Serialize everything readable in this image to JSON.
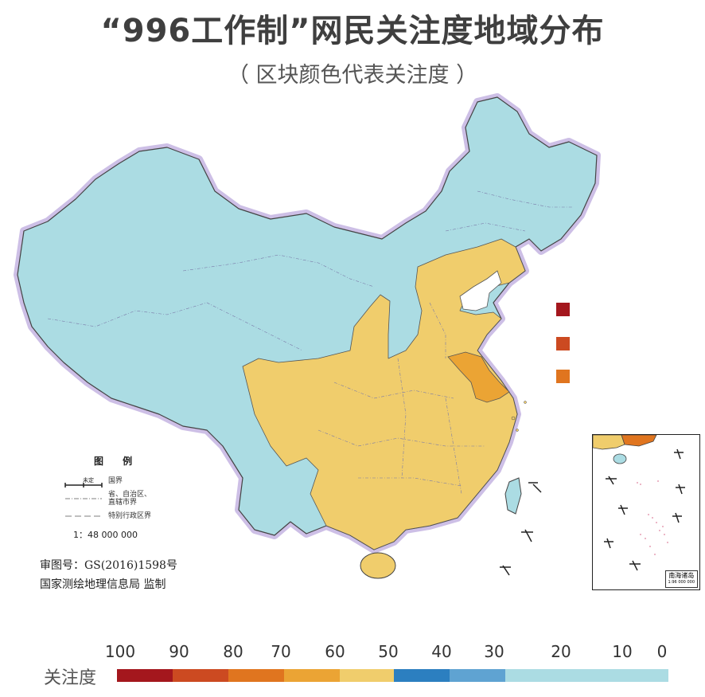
{
  "title": "“996工作制”网民关注度地域分布",
  "subtitle": "（ 区块颜色代表关注度 ）",
  "legend": {
    "title": "图 例",
    "undetermined": "未定",
    "items": [
      {
        "label": "国界"
      },
      {
        "label": "省、自治区、\n直辖市界"
      },
      {
        "label": "特别行政区界"
      }
    ],
    "scale": "1：48 000 000"
  },
  "approval": {
    "number": "审图号：GS(2016)1598号",
    "authority": "国家测绘地理信息局 监制"
  },
  "inset": {
    "name": "南海诸岛",
    "scale": "1:96 000 000"
  },
  "colorbar": {
    "label": "关注度",
    "ticks": [
      "100",
      "90",
      "80",
      "70",
      "60",
      "50",
      "40",
      "30",
      "20",
      "10",
      "0"
    ],
    "colors": {
      "c100_90": "#a4171d",
      "c90_80": "#cc4a21",
      "c80_70": "#e0751f",
      "c70_60": "#eba434",
      "c60_50": "#f0cd6c",
      "c50_40": "#2c7fc0",
      "c40_30": "#5fa3d2",
      "c30_0": "#abdce3"
    }
  },
  "regions": {
    "low_color": "#abdce3",
    "mid_color": "#f0cd6c",
    "high_color": "#eba434",
    "sea_color": "#ffffff",
    "border_glow": "#cdbfe6"
  }
}
